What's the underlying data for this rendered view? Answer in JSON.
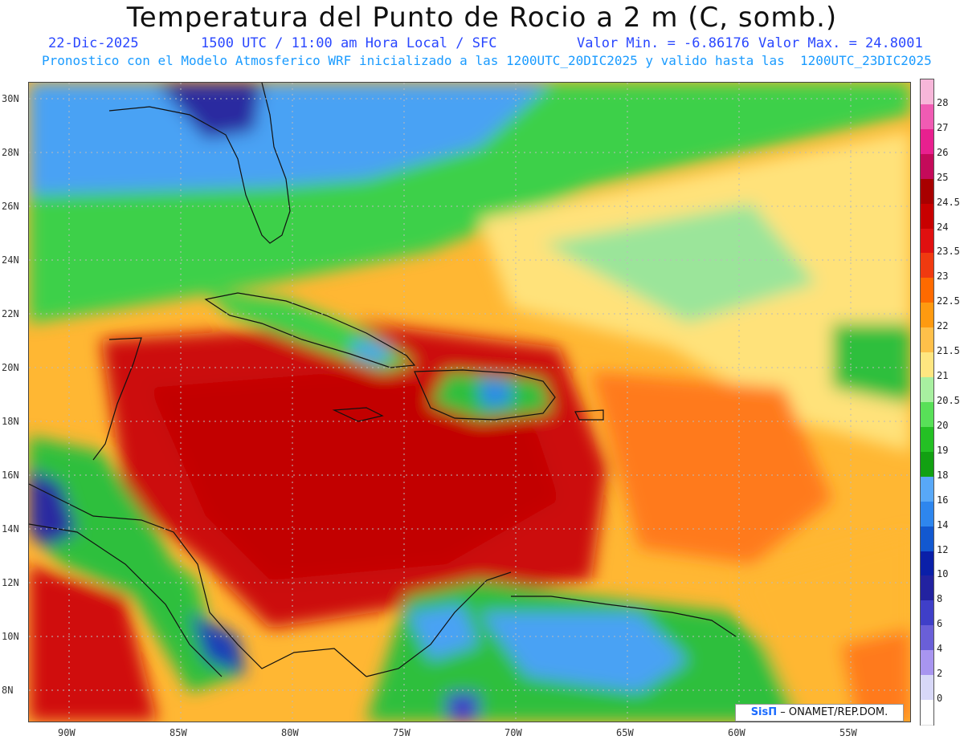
{
  "title": "Temperatura del Punto de Rocio a 2 m (C, somb.)",
  "subtitle_left": "22-Dic-2025",
  "subtitle_mid": "1500 UTC / 11:00 am Hora Local / SFC",
  "subtitle_min": "Valor Min. = -6.86176",
  "subtitle_max": "Valor Max. = 24.8001",
  "subtitle_line2": "Pronostico con el Modelo Atmosferico WRF inicializado a las 1200UTC_20DIC2025 y valido hasta las  1200UTC_23DIC2025",
  "lat_labels": [
    "30N",
    "28N",
    "26N",
    "24N",
    "22N",
    "20N",
    "18N",
    "16N",
    "14N",
    "12N",
    "10N",
    "8N"
  ],
  "lon_labels": [
    "90W",
    "85W",
    "80W",
    "75W",
    "70W",
    "65W",
    "60W",
    "55W"
  ],
  "colorbar": {
    "labels": [
      "28",
      "27",
      "26",
      "25",
      "24.5",
      "24",
      "23.5",
      "23",
      "22.5",
      "22",
      "21.5",
      "21",
      "20.5",
      "20",
      "19",
      "18",
      "16",
      "14",
      "12",
      "10",
      "8",
      "6",
      "4",
      "2",
      "0"
    ],
    "colors": [
      "#f7b6d9",
      "#f05bb3",
      "#e8208f",
      "#c40a5a",
      "#a80000",
      "#c80000",
      "#e01010",
      "#f03a10",
      "#ff6a00",
      "#ff9a10",
      "#ffc04a",
      "#ffe680",
      "#a8f0a0",
      "#58e058",
      "#24c024",
      "#12a012",
      "#58a8f8",
      "#2e86ee",
      "#1258d0",
      "#0a1fa8",
      "#2222a0",
      "#3f3fc8",
      "#6a5fd8",
      "#a895f0",
      "#d8d8f8",
      "#ffffff"
    ]
  },
  "credit": {
    "brand": "SisΠ",
    "text": "– ONAMET/REP.DOM."
  }
}
